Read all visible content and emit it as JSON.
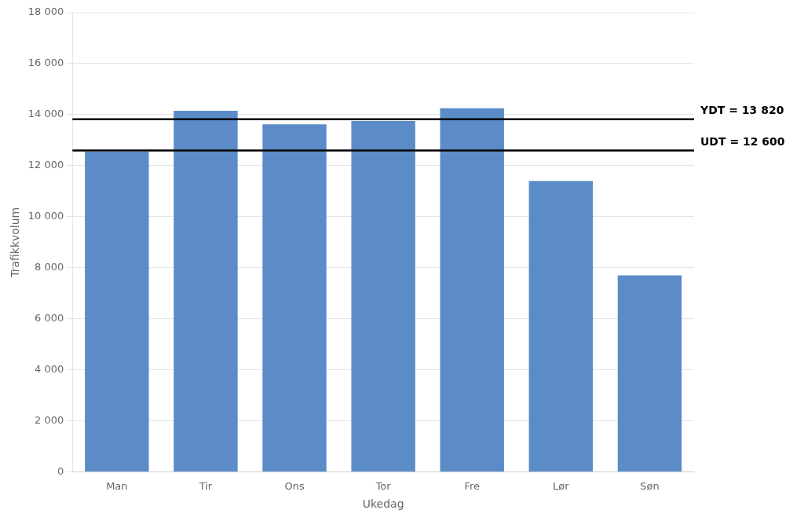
{
  "chart_data": {
    "type": "bar",
    "categories": [
      "Man",
      "Tir",
      "Ons",
      "Tor",
      "Fre",
      "Lør",
      "Søn"
    ],
    "values": [
      12550,
      14150,
      13620,
      13750,
      14250,
      11400,
      7700
    ],
    "color": "#5b8cc8",
    "x_label": "Ukedag",
    "y_label": "Trafikkvolum",
    "ylim": [
      0,
      18000
    ],
    "yticks": [
      0,
      {
        "value": 2000,
        "label": "2 000"
      },
      {
        "value": 4000,
        "label": "4 000"
      },
      {
        "value": 6000,
        "label": "6 000"
      },
      {
        "value": 8000,
        "label": "8 000"
      },
      {
        "value": 10000,
        "label": "10 000"
      },
      {
        "value": 12000,
        "label": "12 000"
      },
      {
        "value": 14000,
        "label": "14 000"
      },
      {
        "value": 16000,
        "label": "16 000"
      },
      {
        "value": 18000,
        "label": "18 000"
      }
    ],
    "annotations": [
      {
        "y": 13820,
        "label": "YDT = 13 820",
        "color": "#000000"
      },
      {
        "y": 12600,
        "label": "UDT = 12 600",
        "color": "#000000"
      }
    ],
    "grid": true,
    "legend": false
  }
}
